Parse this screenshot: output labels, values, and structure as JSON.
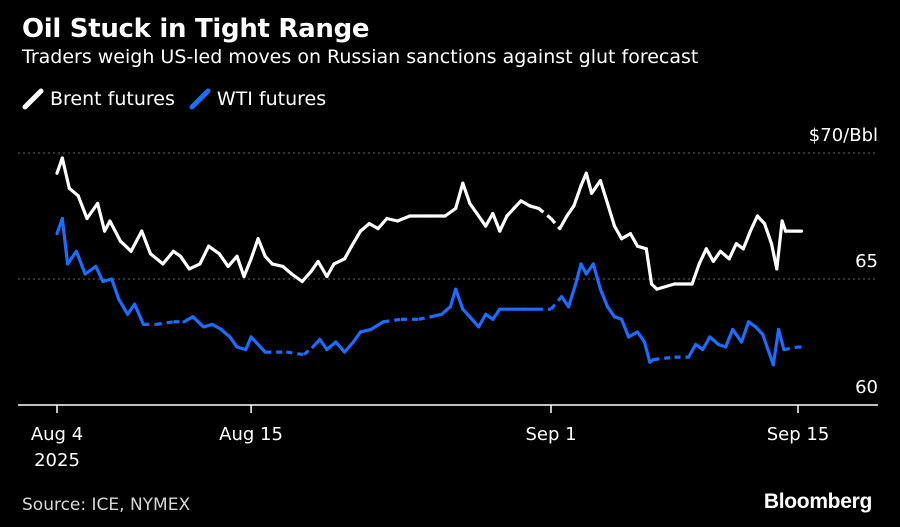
{
  "header": {
    "title": "Oil Stuck in Tight Range",
    "subtitle": "Traders weigh US-led moves on Russian sanctions against glut forecast"
  },
  "footer": {
    "source": "Source: ICE, NYMEX",
    "brand": "Bloomberg"
  },
  "colors": {
    "background": "#000000",
    "brent": "#ffffff",
    "wti": "#1a6dff",
    "grid": "#666666",
    "text": "#ffffff"
  },
  "chart_data": {
    "type": "line",
    "title": "Oil Stuck in Tight Range",
    "subtitle": "Traders weigh US-led moves on Russian sanctions against glut forecast",
    "y_unit_label": "$70/Bbl",
    "ylim": [
      60,
      70
    ],
    "yticks": [
      {
        "value": 70,
        "label": "$70/Bbl"
      },
      {
        "value": 65,
        "label": "65"
      },
      {
        "value": 60,
        "label": "60"
      }
    ],
    "xlim": [
      0,
      42
    ],
    "xticks": [
      {
        "x": 0,
        "label": "Aug 4",
        "sublabel": "2025"
      },
      {
        "x": 11,
        "label": "Aug 15",
        "sublabel": ""
      },
      {
        "x": 28,
        "label": "Sep 1",
        "sublabel": ""
      },
      {
        "x": 42,
        "label": "Sep 15",
        "sublabel": ""
      }
    ],
    "grid": true,
    "legend_position": "top-left",
    "series": [
      {
        "name": "Brent futures",
        "color": "#ffffff",
        "points": [
          [
            0,
            69.2,
            1
          ],
          [
            0.3,
            69.8,
            1
          ],
          [
            0.7,
            68.6,
            1
          ],
          [
            1.2,
            68.3,
            1
          ],
          [
            1.7,
            67.4,
            1
          ],
          [
            2.3,
            68.0,
            1
          ],
          [
            2.7,
            66.9,
            1
          ],
          [
            3.0,
            67.3,
            1
          ],
          [
            3.6,
            66.5,
            1
          ],
          [
            4.2,
            66.1,
            1
          ],
          [
            4.8,
            66.9,
            1
          ],
          [
            5.3,
            66.0,
            1
          ],
          [
            6.0,
            65.6,
            1
          ],
          [
            6.6,
            66.1,
            1
          ],
          [
            7.0,
            65.9,
            1
          ],
          [
            7.5,
            65.4,
            1
          ],
          [
            8.1,
            65.6,
            1
          ],
          [
            8.6,
            66.3,
            1
          ],
          [
            9.2,
            66.0,
            1
          ],
          [
            9.7,
            65.5,
            1
          ],
          [
            10.2,
            65.9,
            1
          ],
          [
            10.6,
            65.1,
            1
          ],
          [
            11.0,
            65.8,
            1
          ],
          [
            11.4,
            66.6,
            1
          ],
          [
            11.8,
            65.9,
            1
          ],
          [
            12.2,
            65.6,
            1
          ],
          [
            12.8,
            65.5,
            1
          ],
          [
            13.3,
            65.2,
            1
          ],
          [
            13.9,
            64.9,
            1
          ],
          [
            14.4,
            65.3,
            1
          ],
          [
            14.8,
            65.7,
            1
          ],
          [
            15.3,
            65.1,
            1
          ],
          [
            15.7,
            65.6,
            1
          ],
          [
            16.3,
            65.8,
            1
          ],
          [
            16.7,
            66.3,
            1
          ],
          [
            17.2,
            66.9,
            1
          ],
          [
            17.7,
            67.2,
            1
          ],
          [
            18.2,
            67.0,
            1
          ],
          [
            18.7,
            67.4,
            1
          ],
          [
            19.3,
            67.3,
            1
          ],
          [
            20.0,
            67.5,
            1
          ],
          [
            21.0,
            67.5,
            1
          ],
          [
            22.0,
            67.5,
            1
          ],
          [
            22.6,
            67.8,
            1
          ],
          [
            23.0,
            68.8,
            1
          ],
          [
            23.4,
            68.0,
            1
          ],
          [
            23.8,
            67.6,
            1
          ],
          [
            24.3,
            67.1,
            1
          ],
          [
            24.7,
            67.6,
            1
          ],
          [
            25.1,
            66.9,
            1
          ],
          [
            25.5,
            67.5,
            1
          ],
          [
            25.9,
            67.8,
            1
          ],
          [
            26.3,
            68.1,
            1
          ],
          [
            26.8,
            67.9,
            1
          ],
          [
            27.3,
            67.8,
            0
          ],
          [
            28.0,
            67.4,
            0
          ],
          [
            28.5,
            67.0,
            1
          ],
          [
            28.9,
            67.5,
            1
          ],
          [
            29.3,
            67.9,
            1
          ],
          [
            29.7,
            68.7,
            1
          ],
          [
            30.0,
            69.2,
            1
          ],
          [
            30.3,
            68.4,
            1
          ],
          [
            30.8,
            68.9,
            1
          ],
          [
            31.2,
            68.0,
            1
          ],
          [
            31.6,
            67.1,
            1
          ],
          [
            32.0,
            66.6,
            1
          ],
          [
            32.5,
            66.8,
            1
          ],
          [
            32.9,
            66.3,
            1
          ],
          [
            33.4,
            66.2,
            1
          ],
          [
            33.7,
            64.8,
            1
          ],
          [
            34.0,
            64.6,
            1
          ],
          [
            35.0,
            64.8,
            1
          ],
          [
            36.0,
            64.8,
            1
          ],
          [
            36.4,
            65.6,
            1
          ],
          [
            36.8,
            66.2,
            1
          ],
          [
            37.2,
            65.7,
            1
          ],
          [
            37.6,
            66.1,
            1
          ],
          [
            38.1,
            65.8,
            1
          ],
          [
            38.5,
            66.4,
            1
          ],
          [
            38.9,
            66.2,
            1
          ],
          [
            39.3,
            66.9,
            1
          ],
          [
            39.7,
            67.5,
            1
          ],
          [
            40.1,
            67.2,
            1
          ],
          [
            40.5,
            66.4,
            1
          ],
          [
            40.8,
            65.4,
            1
          ],
          [
            41.1,
            67.3,
            1
          ],
          [
            41.3,
            66.9,
            1
          ],
          [
            42.0,
            66.9,
            1
          ],
          [
            42.2,
            66.9,
            1
          ]
        ]
      },
      {
        "name": "WTI futures",
        "color": "#1a6dff",
        "points": [
          [
            0,
            66.8,
            1
          ],
          [
            0.3,
            67.4,
            1
          ],
          [
            0.6,
            65.6,
            1
          ],
          [
            1.1,
            66.1,
            1
          ],
          [
            1.6,
            65.2,
            1
          ],
          [
            2.2,
            65.5,
            1
          ],
          [
            2.6,
            64.9,
            1
          ],
          [
            3.1,
            65.0,
            1
          ],
          [
            3.5,
            64.2,
            1
          ],
          [
            4.0,
            63.6,
            1
          ],
          [
            4.4,
            64.0,
            1
          ],
          [
            4.9,
            63.2,
            0
          ],
          [
            5.6,
            63.2,
            0
          ],
          [
            6.6,
            63.3,
            0
          ],
          [
            7.2,
            63.3,
            1
          ],
          [
            7.7,
            63.5,
            1
          ],
          [
            8.3,
            63.1,
            1
          ],
          [
            8.8,
            63.2,
            1
          ],
          [
            9.3,
            63.0,
            1
          ],
          [
            9.8,
            62.7,
            1
          ],
          [
            10.2,
            62.3,
            1
          ],
          [
            10.7,
            62.2,
            1
          ],
          [
            11.0,
            62.7,
            1
          ],
          [
            11.4,
            62.4,
            1
          ],
          [
            11.8,
            62.1,
            0
          ],
          [
            13.0,
            62.1,
            0
          ],
          [
            14.0,
            62.0,
            0
          ],
          [
            14.5,
            62.3,
            1
          ],
          [
            14.9,
            62.6,
            1
          ],
          [
            15.3,
            62.2,
            1
          ],
          [
            15.8,
            62.5,
            1
          ],
          [
            16.3,
            62.1,
            1
          ],
          [
            16.8,
            62.5,
            1
          ],
          [
            17.2,
            62.9,
            1
          ],
          [
            17.8,
            63.0,
            1
          ],
          [
            18.5,
            63.3,
            0
          ],
          [
            19.5,
            63.4,
            0
          ],
          [
            20.5,
            63.4,
            0
          ],
          [
            21.2,
            63.5,
            1
          ],
          [
            21.8,
            63.6,
            1
          ],
          [
            22.3,
            63.9,
            1
          ],
          [
            22.6,
            64.6,
            1
          ],
          [
            23.0,
            63.8,
            1
          ],
          [
            23.4,
            63.5,
            1
          ],
          [
            23.9,
            63.1,
            1
          ],
          [
            24.3,
            63.6,
            1
          ],
          [
            24.7,
            63.4,
            1
          ],
          [
            25.1,
            63.8,
            1
          ],
          [
            25.6,
            63.8,
            1
          ],
          [
            26.5,
            63.8,
            1
          ],
          [
            27.2,
            63.8,
            0
          ],
          [
            28.0,
            63.8,
            0
          ],
          [
            28.6,
            64.3,
            1
          ],
          [
            29.0,
            63.9,
            1
          ],
          [
            29.4,
            64.8,
            1
          ],
          [
            29.7,
            65.6,
            1
          ],
          [
            30.0,
            65.2,
            1
          ],
          [
            30.4,
            65.6,
            1
          ],
          [
            30.8,
            64.6,
            1
          ],
          [
            31.2,
            63.9,
            1
          ],
          [
            31.6,
            63.5,
            1
          ],
          [
            32.0,
            63.4,
            1
          ],
          [
            32.4,
            62.7,
            1
          ],
          [
            32.9,
            62.9,
            1
          ],
          [
            33.3,
            62.5,
            1
          ],
          [
            33.6,
            61.7,
            1
          ],
          [
            33.8,
            61.8,
            0
          ],
          [
            35.0,
            61.9,
            0
          ],
          [
            35.8,
            61.9,
            1
          ],
          [
            36.2,
            62.4,
            1
          ],
          [
            36.6,
            62.2,
            1
          ],
          [
            37.0,
            62.7,
            1
          ],
          [
            37.5,
            62.4,
            1
          ],
          [
            37.9,
            62.3,
            1
          ],
          [
            38.3,
            63.0,
            1
          ],
          [
            38.8,
            62.5,
            1
          ],
          [
            39.2,
            63.3,
            1
          ],
          [
            39.6,
            63.1,
            1
          ],
          [
            40.0,
            62.8,
            1
          ],
          [
            40.3,
            62.2,
            1
          ],
          [
            40.6,
            61.6,
            1
          ],
          [
            40.9,
            63.0,
            1
          ],
          [
            41.2,
            62.2,
            0
          ],
          [
            42.0,
            62.3,
            0
          ],
          [
            42.2,
            62.3,
            1
          ]
        ]
      }
    ]
  }
}
